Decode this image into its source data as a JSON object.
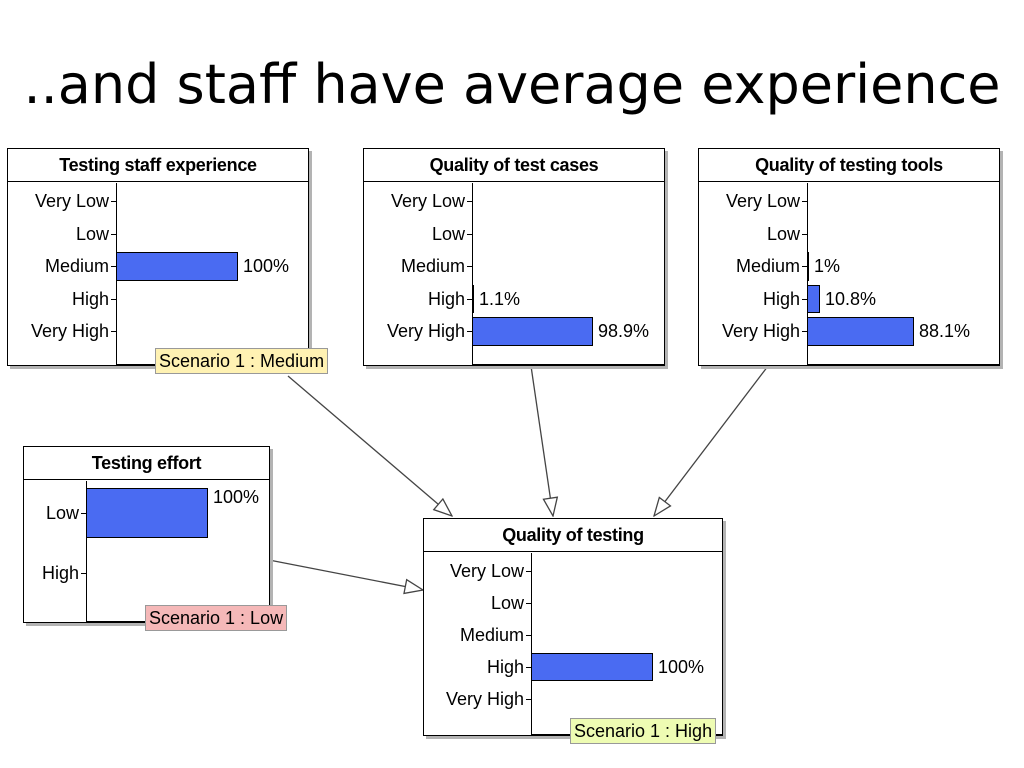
{
  "slide": {
    "title": "..and staff have average experience"
  },
  "colors": {
    "bar": "#4a6bf2",
    "scenario_medium_bg": "#fff2b3",
    "scenario_low_bg": "#f5b8b8",
    "scenario_high_bg": "#eefcb3"
  },
  "nodes": {
    "staff_experience": {
      "title": "Testing staff experience",
      "states": [
        {
          "label": "Very Low",
          "prob": 0,
          "pct": ""
        },
        {
          "label": "Low",
          "prob": 0,
          "pct": ""
        },
        {
          "label": "Medium",
          "prob": 1.0,
          "pct": "100%"
        },
        {
          "label": "High",
          "prob": 0,
          "pct": ""
        },
        {
          "label": "Very High",
          "prob": 0,
          "pct": ""
        }
      ],
      "scenario": "Scenario 1 : Medium"
    },
    "test_cases": {
      "title": "Quality of test cases",
      "states": [
        {
          "label": "Very Low",
          "prob": 0,
          "pct": ""
        },
        {
          "label": "Low",
          "prob": 0,
          "pct": ""
        },
        {
          "label": "Medium",
          "prob": 0,
          "pct": ""
        },
        {
          "label": "High",
          "prob": 0.011,
          "pct": "1.1%"
        },
        {
          "label": "Very High",
          "prob": 0.989,
          "pct": "98.9%"
        }
      ]
    },
    "testing_tools": {
      "title": "Quality of testing tools",
      "states": [
        {
          "label": "Very Low",
          "prob": 0,
          "pct": ""
        },
        {
          "label": "Low",
          "prob": 0,
          "pct": ""
        },
        {
          "label": "Medium",
          "prob": 0.01,
          "pct": "1%"
        },
        {
          "label": "High",
          "prob": 0.108,
          "pct": "10.8%"
        },
        {
          "label": "Very High",
          "prob": 0.881,
          "pct": "88.1%"
        }
      ]
    },
    "testing_effort": {
      "title": "Testing effort",
      "states": [
        {
          "label": "Low",
          "prob": 1.0,
          "pct": "100%"
        },
        {
          "label": "High",
          "prob": 0,
          "pct": ""
        }
      ],
      "scenario": "Scenario 1 : Low"
    },
    "quality_of_testing": {
      "title": "Quality of testing",
      "states": [
        {
          "label": "Very Low",
          "prob": 0,
          "pct": ""
        },
        {
          "label": "Low",
          "prob": 0,
          "pct": ""
        },
        {
          "label": "Medium",
          "prob": 0,
          "pct": ""
        },
        {
          "label": "High",
          "prob": 1.0,
          "pct": "100%"
        },
        {
          "label": "Very High",
          "prob": 0,
          "pct": ""
        }
      ],
      "scenario": "Scenario 1 : High"
    }
  }
}
